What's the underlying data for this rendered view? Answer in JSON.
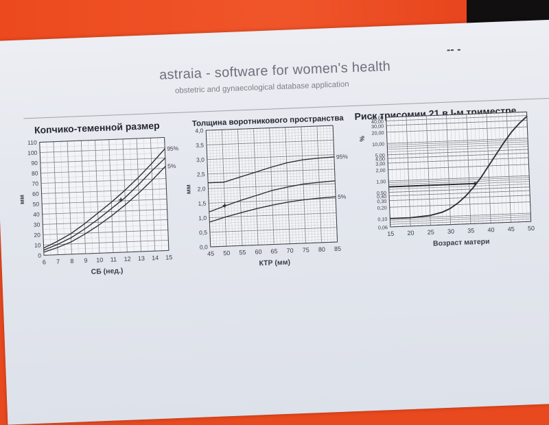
{
  "header": {
    "title": "astraia - software for women's health",
    "subtitle": "obstetric and gynaecological database application",
    "pen_mark": "-- -"
  },
  "chart_data": [
    {
      "type": "line",
      "title": "Копчико-теменной размер",
      "xlabel": "СБ (нед.)",
      "ylabel": "мм",
      "xlim": [
        6,
        15
      ],
      "ylim": [
        0,
        110
      ],
      "x_ticks": [
        "6",
        "7",
        "8",
        "9",
        "10",
        "11",
        "12",
        "13",
        "14",
        "15"
      ],
      "y_ticks": [
        "0",
        "10",
        "20",
        "30",
        "40",
        "50",
        "60",
        "70",
        "80",
        "90",
        "100",
        "110"
      ],
      "series": [
        {
          "name": "95%",
          "x": [
            6,
            7,
            8,
            9,
            10,
            11,
            12,
            13,
            14,
            15
          ],
          "values": [
            7,
            13,
            20,
            29,
            39,
            49,
            60,
            72,
            85,
            99
          ]
        },
        {
          "x": [
            6,
            7,
            8,
            9,
            10,
            11,
            12,
            13,
            14,
            15
          ],
          "values": [
            5,
            10,
            16,
            24,
            33,
            43,
            53,
            65,
            78,
            90
          ]
        },
        {
          "name": "5%",
          "x": [
            6,
            7,
            8,
            9,
            10,
            11,
            12,
            13,
            14,
            15
          ],
          "values": [
            3,
            7,
            12,
            19,
            27,
            36,
            46,
            57,
            69,
            82
          ]
        }
      ],
      "marker": {
        "x": 11.7,
        "y": 51
      },
      "grid": true
    },
    {
      "type": "line",
      "title": "Толщина воротникового пространства",
      "xlabel": "КТР (мм)",
      "ylabel": "мм",
      "xlim": [
        45,
        85
      ],
      "ylim": [
        0,
        4
      ],
      "x_ticks": [
        "45",
        "50",
        "55",
        "60",
        "65",
        "70",
        "75",
        "80",
        "85"
      ],
      "y_ticks": [
        "0,0",
        "0,5",
        "1,0",
        "1,5",
        "2,0",
        "2,5",
        "3,0",
        "3,5",
        "4,0"
      ],
      "series": [
        {
          "name": "95%",
          "x": [
            45,
            50,
            55,
            60,
            65,
            70,
            75,
            80,
            85
          ],
          "values": [
            2.2,
            2.2,
            2.35,
            2.5,
            2.65,
            2.78,
            2.86,
            2.9,
            2.92
          ]
        },
        {
          "x": [
            45,
            50,
            55,
            60,
            65,
            70,
            75,
            80,
            85
          ],
          "values": [
            1.2,
            1.38,
            1.55,
            1.7,
            1.85,
            1.95,
            2.03,
            2.07,
            2.1
          ]
        },
        {
          "name": "5%",
          "x": [
            45,
            50,
            55,
            60,
            65,
            70,
            75,
            80,
            85
          ],
          "values": [
            0.85,
            1.0,
            1.13,
            1.25,
            1.35,
            1.43,
            1.49,
            1.53,
            1.55
          ]
        }
      ],
      "marker": {
        "x": 50,
        "y": 1.4
      },
      "grid": true
    },
    {
      "type": "line",
      "title": "Риск трисомии 21 в I-м триместре",
      "xlabel": "Возраст матери",
      "ylabel": "%",
      "xlim": [
        15,
        50
      ],
      "ylim": [
        0.06,
        50
      ],
      "y_scale": "log",
      "x_ticks": [
        "15",
        "20",
        "25",
        "30",
        "35",
        "40",
        "45",
        "50"
      ],
      "y_ticks": [
        "50,00",
        "40,00",
        "30,00",
        "20,00",
        "10,00",
        "5,00",
        "4,00",
        "3,00",
        "2,00",
        "1,00",
        "0,50",
        "0,40",
        "0,30",
        "0,20",
        "0,10",
        "0,06"
      ],
      "series": [
        {
          "x": [
            15,
            20,
            25,
            28,
            30,
            32,
            34,
            36,
            38,
            40,
            42,
            44,
            46,
            48,
            50
          ],
          "values": [
            0.1,
            0.1,
            0.11,
            0.13,
            0.16,
            0.22,
            0.33,
            0.55,
            1.0,
            2.0,
            4.0,
            8.0,
            15.0,
            25.0,
            38.0
          ]
        }
      ],
      "reference_line": {
        "y": 0.7,
        "x_end": 36.5
      },
      "marker": {
        "x": 36.5,
        "y": 0.7
      },
      "grid": true
    }
  ]
}
